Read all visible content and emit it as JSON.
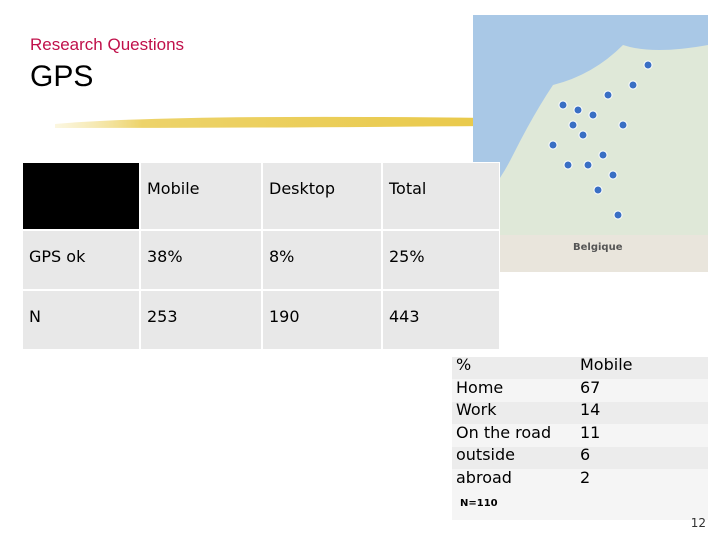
{
  "header": {
    "section": "Research Questions",
    "title": "GPS"
  },
  "table": {
    "columns": [
      "Mobile",
      "Desktop",
      "Total"
    ],
    "rows": [
      [
        "GPS ok",
        "38%",
        "8%",
        "25%"
      ],
      [
        "N",
        "253",
        "190",
        "443"
      ]
    ]
  },
  "table2": {
    "rows": [
      [
        "%",
        "Mobile"
      ],
      [
        "Home",
        "67"
      ],
      [
        "Work",
        "14"
      ],
      [
        "On the road",
        "11"
      ],
      [
        "outside",
        "6"
      ],
      [
        "abroad",
        "2"
      ]
    ],
    "note": "N=110"
  },
  "page_number": "12"
}
